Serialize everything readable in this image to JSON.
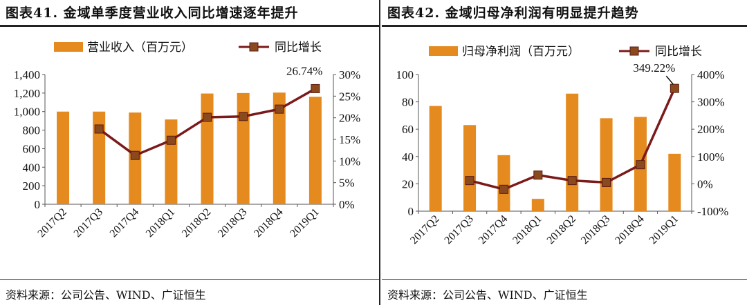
{
  "chart_data": [
    {
      "type": "bar+line",
      "title": "图表41.  金域单季度营业收入同比增速逐年提升",
      "categories": [
        "2017Q2",
        "2017Q3",
        "2017Q4",
        "2018Q1",
        "2018Q2",
        "2018Q3",
        "2018Q4",
        "2019Q1"
      ],
      "series": [
        {
          "name": "营业收入（百万元）",
          "type": "bar",
          "axis": "left",
          "color": "#E58A1F",
          "values": [
            1000,
            1000,
            990,
            915,
            1195,
            1200,
            1205,
            1160
          ]
        },
        {
          "name": "同比增长",
          "type": "line",
          "axis": "right",
          "color": "#7B1A1A",
          "values": [
            null,
            17.4,
            11.3,
            14.8,
            20.1,
            20.3,
            22.0,
            26.74
          ]
        }
      ],
      "left_axis": {
        "min": 0,
        "max": 1400,
        "step": 200,
        "ticks": [
          "0",
          "200",
          "400",
          "600",
          "800",
          "1,000",
          "1,200",
          "1,400"
        ]
      },
      "right_axis": {
        "min": 0,
        "max": 30,
        "step": 5,
        "ticks": [
          "0%",
          "5%",
          "10%",
          "15%",
          "20%",
          "25%",
          "30%"
        ]
      },
      "annotation": {
        "text": "26.74%",
        "index": 7
      },
      "source": "资料来源：公司公告、WIND、广证恒生"
    },
    {
      "type": "bar+line",
      "title": "图表42.  金域归母净利润有明显提升趋势",
      "categories": [
        "2017Q2",
        "2017Q3",
        "2017Q4",
        "2018Q1",
        "2018Q2",
        "2018Q3",
        "2018Q4",
        "2019Q1"
      ],
      "series": [
        {
          "name": "归母净利润（百万元）",
          "type": "bar",
          "axis": "left",
          "color": "#E58A1F",
          "values": [
            77,
            63,
            41,
            9,
            86,
            68,
            69,
            42
          ]
        },
        {
          "name": "同比增长",
          "type": "line",
          "axis": "right",
          "color": "#7B1A1A",
          "values": [
            null,
            12,
            -20,
            32,
            12,
            5,
            70,
            349.22
          ]
        }
      ],
      "left_axis": {
        "min": 0,
        "max": 100,
        "step": 20,
        "ticks": [
          "0",
          "20",
          "40",
          "60",
          "80",
          "100"
        ]
      },
      "right_axis": {
        "min": -100,
        "max": 400,
        "step": 100,
        "ticks": [
          "-100%",
          "0%",
          "100%",
          "200%",
          "300%",
          "400%"
        ]
      },
      "annotation": {
        "text": "349.22%",
        "index": 7
      },
      "source": "资料来源：公司公告、WIND、广证恒生"
    }
  ]
}
